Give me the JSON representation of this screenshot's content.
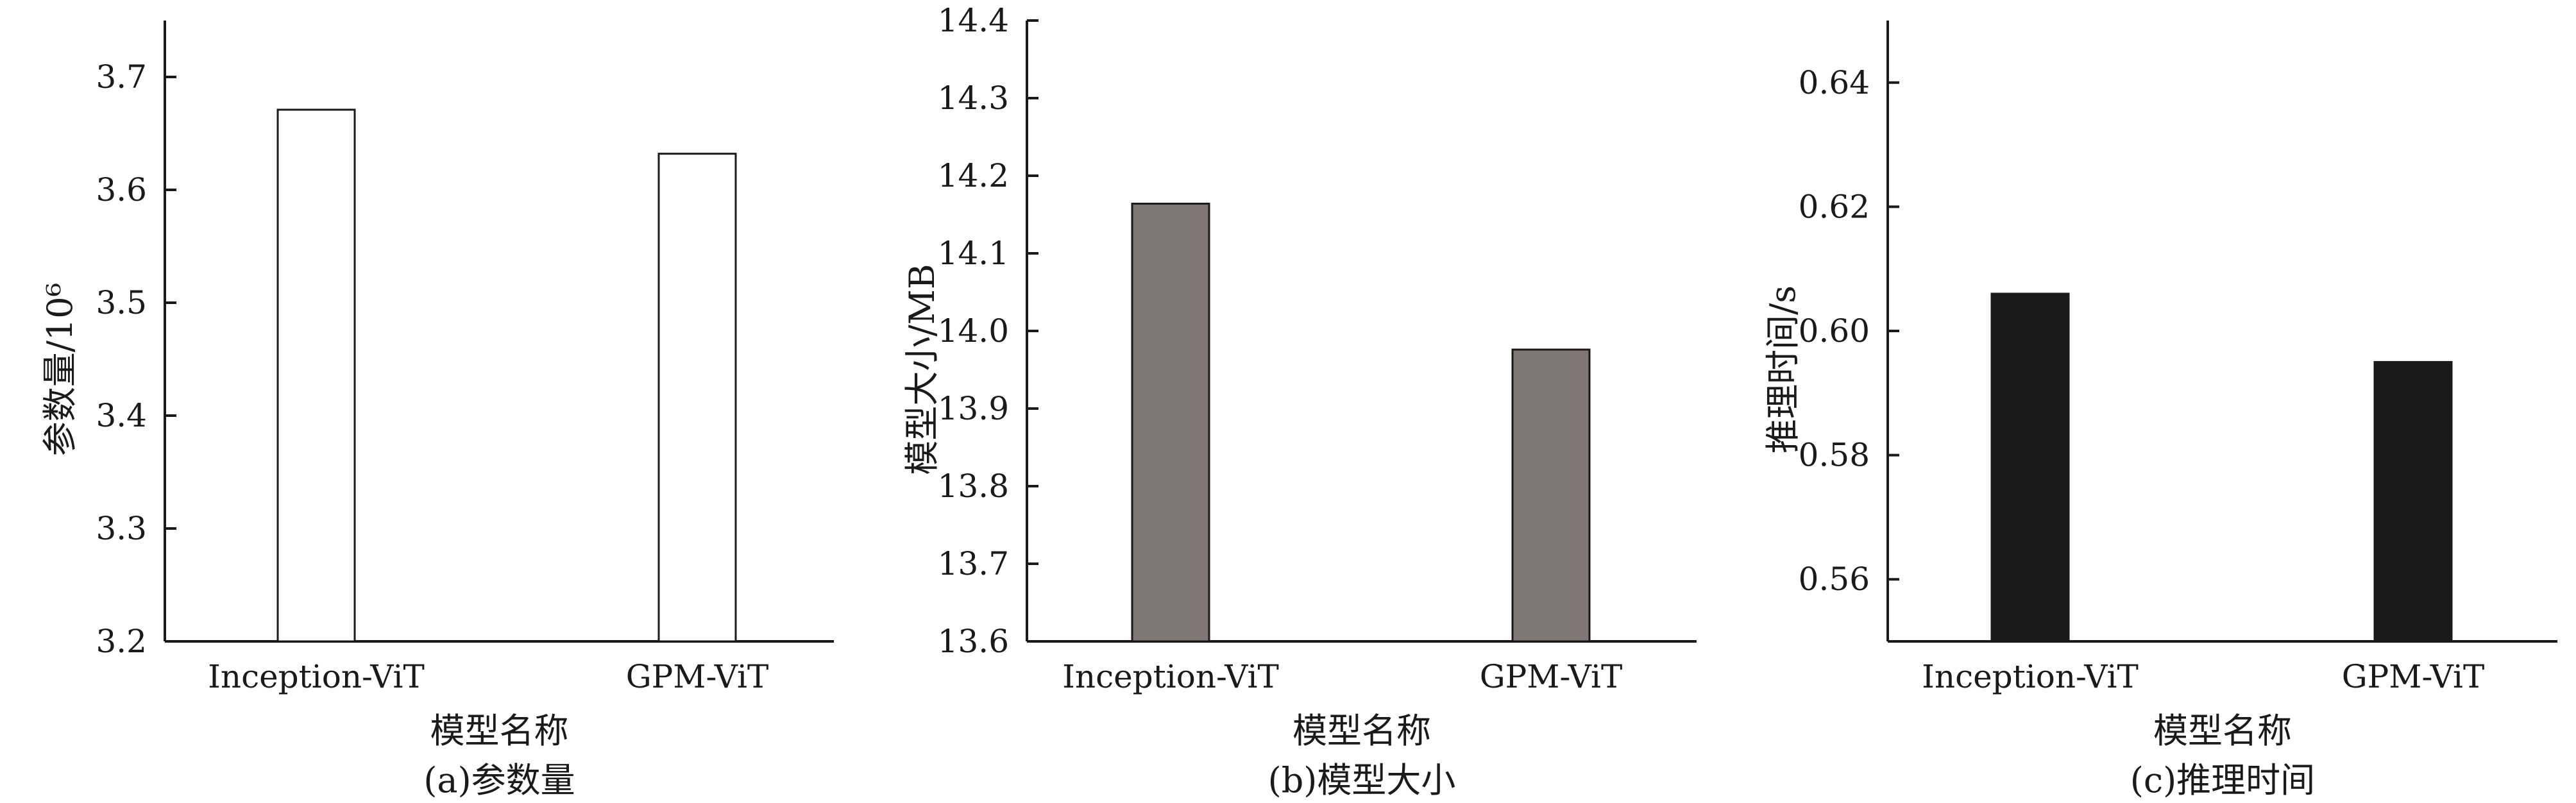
{
  "chart_data": [
    {
      "type": "bar",
      "categories": [
        "Inception-ViT",
        "GPM-ViT"
      ],
      "values": [
        3.671,
        3.632
      ],
      "xlabel": "模型名称",
      "ylabel": "参数量/10⁶",
      "caption": "(a)参数量",
      "ylim": [
        3.2,
        3.75
      ],
      "yticks": [
        "3.2",
        "3.3",
        "3.4",
        "3.5",
        "3.6",
        "3.7"
      ],
      "bar_color": "#ffffff",
      "grid": false
    },
    {
      "type": "bar",
      "categories": [
        "Inception-ViT",
        "GPM-ViT"
      ],
      "values": [
        14.164,
        13.976
      ],
      "xlabel": "模型名称",
      "ylabel": "模型大小/MB",
      "caption": "(b)模型大小",
      "ylim": [
        13.6,
        14.4
      ],
      "yticks": [
        "13.6",
        "13.7",
        "13.8",
        "13.9",
        "14.0",
        "14.1",
        "14.2",
        "14.3",
        "14.4"
      ],
      "bar_color": "#807673",
      "grid": false
    },
    {
      "type": "bar",
      "categories": [
        "Inception-ViT",
        "GPM-ViT"
      ],
      "values": [
        0.606,
        0.595
      ],
      "xlabel": "模型名称",
      "ylabel": "推理时间/s",
      "caption": "(c)推理时间",
      "ylim": [
        0.55,
        0.65
      ],
      "yticks": [
        "0.56",
        "0.58",
        "0.60",
        "0.62",
        "0.64"
      ],
      "bar_color": "#1c1a18",
      "grid": false
    }
  ]
}
